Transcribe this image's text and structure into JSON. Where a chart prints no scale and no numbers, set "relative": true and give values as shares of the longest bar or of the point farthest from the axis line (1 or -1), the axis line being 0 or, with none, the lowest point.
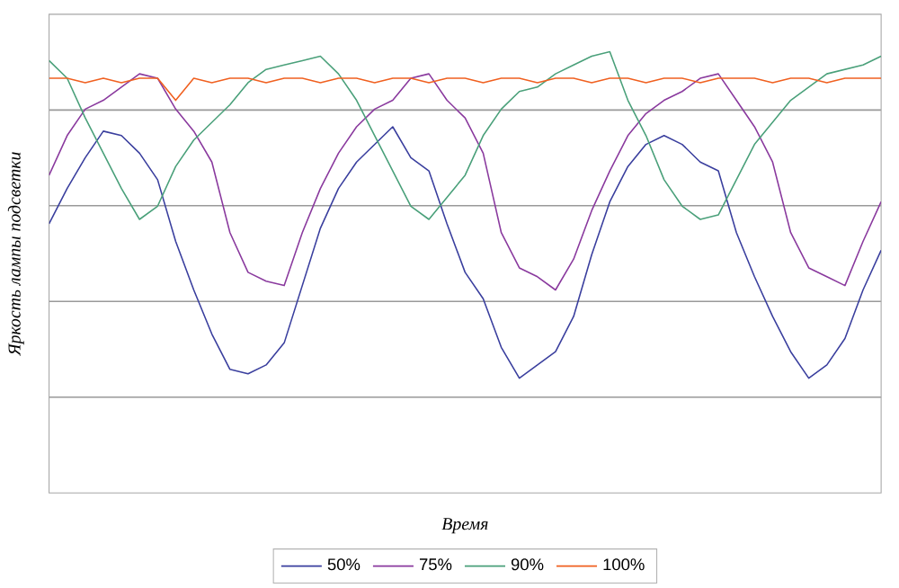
{
  "chart_data": {
    "type": "line",
    "relative": true,
    "xlabel": "Время",
    "ylabel": "Яркость лампы подсветки",
    "grid": "y",
    "legend": "bottom",
    "marker": "none",
    "line_style": "solid",
    "categories": [
      null,
      null,
      null,
      null,
      null,
      null,
      null,
      null,
      null,
      null,
      null,
      null,
      null,
      null,
      null,
      null,
      null,
      null,
      null,
      null,
      null,
      null,
      null,
      null,
      null,
      null,
      null,
      null,
      null,
      null,
      null,
      null,
      null,
      null,
      null,
      null,
      null,
      null,
      null,
      null,
      null,
      null,
      null,
      null,
      null,
      null,
      null
    ],
    "series": [
      {
        "name": "50%",
        "color": "#3a3f9e",
        "values": [
          0.61,
          0.69,
          0.76,
          0.82,
          0.81,
          0.77,
          0.71,
          0.57,
          0.46,
          0.36,
          0.28,
          0.27,
          0.29,
          0.34,
          0.47,
          0.6,
          0.69,
          0.75,
          0.79,
          0.83,
          0.76,
          0.73,
          0.61,
          0.5,
          0.44,
          0.33,
          0.26,
          0.29,
          0.32,
          0.4,
          0.54,
          0.66,
          0.74,
          0.79,
          0.81,
          0.79,
          0.75,
          0.73,
          0.59,
          0.49,
          0.4,
          0.32,
          0.26,
          0.29,
          0.35,
          0.46,
          0.55
        ]
      },
      {
        "name": "75%",
        "color": "#8a3a9e",
        "values": [
          0.72,
          0.81,
          0.87,
          0.89,
          0.92,
          0.95,
          0.94,
          0.87,
          0.82,
          0.75,
          0.59,
          0.5,
          0.48,
          0.47,
          0.59,
          0.69,
          0.77,
          0.83,
          0.87,
          0.89,
          0.94,
          0.95,
          0.89,
          0.85,
          0.77,
          0.59,
          0.51,
          0.49,
          0.46,
          0.53,
          0.64,
          0.73,
          0.81,
          0.86,
          0.89,
          0.91,
          0.94,
          0.95,
          0.89,
          0.83,
          0.75,
          0.59,
          0.51,
          0.49,
          0.47,
          0.57,
          0.66
        ]
      },
      {
        "name": "90%",
        "color": "#4aa07a",
        "values": [
          0.98,
          0.94,
          0.85,
          0.77,
          0.69,
          0.62,
          0.65,
          0.74,
          0.8,
          0.84,
          0.88,
          0.93,
          0.96,
          0.97,
          0.98,
          0.99,
          0.95,
          0.89,
          0.81,
          0.73,
          0.65,
          0.62,
          0.67,
          0.72,
          0.81,
          0.87,
          0.91,
          0.92,
          0.95,
          0.97,
          0.99,
          1,
          0.89,
          0.81,
          0.71,
          0.65,
          0.62,
          0.63,
          0.71,
          0.79,
          0.84,
          0.89,
          0.92,
          0.95,
          0.96,
          0.97,
          0.99
        ]
      },
      {
        "name": "100%",
        "color": "#f06020",
        "values": [
          0.94,
          0.94,
          0.93,
          0.94,
          0.93,
          0.94,
          0.94,
          0.89,
          0.94,
          0.93,
          0.94,
          0.94,
          0.93,
          0.94,
          0.94,
          0.93,
          0.94,
          0.94,
          0.93,
          0.94,
          0.94,
          0.93,
          0.94,
          0.94,
          0.93,
          0.94,
          0.94,
          0.93,
          0.94,
          0.94,
          0.93,
          0.94,
          0.94,
          0.93,
          0.94,
          0.94,
          0.93,
          0.94,
          0.94,
          0.94,
          0.93,
          0.94,
          0.94,
          0.93,
          0.94,
          0.94,
          0.94
        ]
      }
    ]
  }
}
